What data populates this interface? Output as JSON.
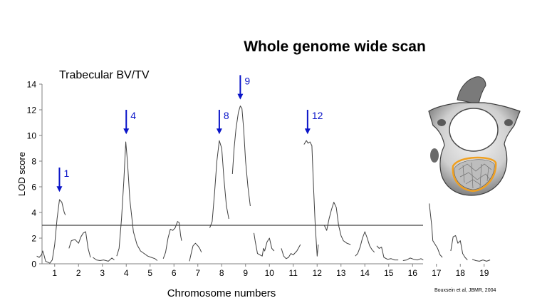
{
  "slide": {
    "title": "Whole genome wide scan",
    "citation": "Bouxsein et al, JBMR, 2004"
  },
  "chart_data": {
    "type": "line",
    "title": "Trabecular BV/TV",
    "xlabel": "Chromosome numbers",
    "ylabel": "LOD score",
    "ylim": [
      0,
      14
    ],
    "y_ticks": [
      0,
      2,
      4,
      6,
      8,
      10,
      12,
      14
    ],
    "x_ticks": [
      "1",
      "2",
      "3",
      "4",
      "5",
      "6",
      "7",
      "8",
      "9",
      "10",
      "11",
      "12",
      "13",
      "14",
      "15",
      "16",
      "17",
      "18",
      "19"
    ],
    "xlim": [
      0.25,
      19.3
    ],
    "threshold": 3.0,
    "grid": false,
    "series": [
      {
        "chromosome": "1",
        "points": [
          [
            0.25,
            0.6
          ],
          [
            0.35,
            0.5
          ],
          [
            0.45,
            0.7
          ],
          [
            0.5,
            1.0
          ],
          [
            0.55,
            0.7
          ],
          [
            0.62,
            0.2
          ],
          [
            0.8,
            0.05
          ],
          [
            0.9,
            0.3
          ],
          [
            1.0,
            1.5
          ],
          [
            1.1,
            3.5
          ],
          [
            1.2,
            5.0
          ],
          [
            1.3,
            4.8
          ],
          [
            1.4,
            4.0
          ],
          [
            1.45,
            3.8
          ]
        ]
      },
      {
        "chromosome": "2",
        "points": [
          [
            1.6,
            1.2
          ],
          [
            1.7,
            1.8
          ],
          [
            1.85,
            1.9
          ],
          [
            2.0,
            1.6
          ],
          [
            2.1,
            2.1
          ],
          [
            2.2,
            2.4
          ],
          [
            2.3,
            2.5
          ],
          [
            2.4,
            1.2
          ],
          [
            2.5,
            0.5
          ]
        ]
      },
      {
        "chromosome": "3",
        "points": [
          [
            2.6,
            0.5
          ],
          [
            2.75,
            0.3
          ],
          [
            2.9,
            0.25
          ],
          [
            3.05,
            0.3
          ],
          [
            3.25,
            0.2
          ],
          [
            3.4,
            0.45
          ],
          [
            3.5,
            0.3
          ]
        ]
      },
      {
        "chromosome": "4",
        "points": [
          [
            3.6,
            0.6
          ],
          [
            3.7,
            1.2
          ],
          [
            3.8,
            3.5
          ],
          [
            3.9,
            6.5
          ],
          [
            3.98,
            9.5
          ],
          [
            4.05,
            8.0
          ],
          [
            4.15,
            5.0
          ],
          [
            4.3,
            2.5
          ],
          [
            4.45,
            1.5
          ],
          [
            4.6,
            1.0
          ],
          [
            4.75,
            0.8
          ],
          [
            4.9,
            0.6
          ],
          [
            5.05,
            0.5
          ],
          [
            5.2,
            0.4
          ],
          [
            5.3,
            0.25
          ]
        ]
      },
      {
        "chromosome": "6",
        "points": [
          [
            5.55,
            0.4
          ],
          [
            5.65,
            0.9
          ],
          [
            5.75,
            2.0
          ],
          [
            5.85,
            2.7
          ],
          [
            5.95,
            2.6
          ],
          [
            6.05,
            2.8
          ],
          [
            6.15,
            3.3
          ],
          [
            6.22,
            3.2
          ],
          [
            6.28,
            2.2
          ],
          [
            6.32,
            1.8
          ]
        ]
      },
      {
        "chromosome": "7",
        "points": [
          [
            6.65,
            0.2
          ],
          [
            6.72,
            0.8
          ],
          [
            6.8,
            1.4
          ],
          [
            6.9,
            1.6
          ],
          [
            7.0,
            1.4
          ],
          [
            7.08,
            1.2
          ],
          [
            7.15,
            0.9
          ]
        ]
      },
      {
        "chromosome": "8",
        "points": [
          [
            7.5,
            2.8
          ],
          [
            7.6,
            3.3
          ],
          [
            7.7,
            5.5
          ],
          [
            7.8,
            8.0
          ],
          [
            7.9,
            9.6
          ],
          [
            8.0,
            9.0
          ],
          [
            8.1,
            6.5
          ],
          [
            8.2,
            4.5
          ],
          [
            8.3,
            3.5
          ]
        ]
      },
      {
        "chromosome": "9",
        "points": [
          [
            8.45,
            7.0
          ],
          [
            8.52,
            9.0
          ],
          [
            8.6,
            10.5
          ],
          [
            8.7,
            11.8
          ],
          [
            8.78,
            12.3
          ],
          [
            8.85,
            12.1
          ],
          [
            8.92,
            10.5
          ],
          [
            9.0,
            8.0
          ],
          [
            9.1,
            6.0
          ],
          [
            9.2,
            4.5
          ]
        ]
      },
      {
        "chromosome": "10",
        "points": [
          [
            9.35,
            2.4
          ],
          [
            9.4,
            1.8
          ],
          [
            9.5,
            0.8
          ],
          [
            9.6,
            0.7
          ],
          [
            9.7,
            0.6
          ],
          [
            9.75,
            1.2
          ],
          [
            9.8,
            1.0
          ],
          [
            9.9,
            1.7
          ],
          [
            10.0,
            2.0
          ],
          [
            10.1,
            1.2
          ],
          [
            10.2,
            1.0
          ]
        ]
      },
      {
        "chromosome": "11",
        "points": [
          [
            10.5,
            1.2
          ],
          [
            10.6,
            0.6
          ],
          [
            10.7,
            0.4
          ],
          [
            10.8,
            0.5
          ],
          [
            10.9,
            0.8
          ],
          [
            11.0,
            0.7
          ],
          [
            11.15,
            1.0
          ],
          [
            11.3,
            1.5
          ]
        ]
      },
      {
        "chromosome": "12",
        "points": [
          [
            11.45,
            9.3
          ],
          [
            11.55,
            9.6
          ],
          [
            11.62,
            9.4
          ],
          [
            11.7,
            9.5
          ],
          [
            11.78,
            9.2
          ],
          [
            11.85,
            6.0
          ],
          [
            11.92,
            3.0
          ],
          [
            12.0,
            0.6
          ],
          [
            12.05,
            1.5
          ]
        ]
      },
      {
        "chromosome": "13",
        "points": [
          [
            12.3,
            3.0
          ],
          [
            12.4,
            2.6
          ],
          [
            12.5,
            3.5
          ],
          [
            12.6,
            4.2
          ],
          [
            12.7,
            4.8
          ],
          [
            12.8,
            4.4
          ],
          [
            12.9,
            3.0
          ],
          [
            13.0,
            2.2
          ],
          [
            13.1,
            1.8
          ],
          [
            13.25,
            1.6
          ],
          [
            13.4,
            1.5
          ]
        ]
      },
      {
        "chromosome": "14",
        "points": [
          [
            13.6,
            0.6
          ],
          [
            13.7,
            0.8
          ],
          [
            13.8,
            1.3
          ],
          [
            13.9,
            2.0
          ],
          [
            14.0,
            2.5
          ],
          [
            14.1,
            2.0
          ],
          [
            14.2,
            1.4
          ],
          [
            14.3,
            1.1
          ],
          [
            14.4,
            0.9
          ]
        ]
      },
      {
        "chromosome": "15",
        "points": [
          [
            14.5,
            1.4
          ],
          [
            14.6,
            1.2
          ],
          [
            14.7,
            1.3
          ],
          [
            14.8,
            0.5
          ],
          [
            14.95,
            0.35
          ],
          [
            15.1,
            0.4
          ],
          [
            15.25,
            0.3
          ],
          [
            15.4,
            0.3
          ]
        ]
      },
      {
        "chromosome": "16",
        "points": [
          [
            15.6,
            0.25
          ],
          [
            15.75,
            0.3
          ],
          [
            15.9,
            0.45
          ],
          [
            16.05,
            0.35
          ],
          [
            16.2,
            0.3
          ],
          [
            16.35,
            0.4
          ],
          [
            16.45,
            0.3
          ]
        ]
      },
      {
        "chromosome": "17",
        "points": [
          [
            16.7,
            4.7
          ],
          [
            16.8,
            3.0
          ],
          [
            16.85,
            1.8
          ],
          [
            16.95,
            1.5
          ],
          [
            17.05,
            1.2
          ],
          [
            17.15,
            0.7
          ],
          [
            17.25,
            0.5
          ]
        ]
      },
      {
        "chromosome": "18",
        "points": [
          [
            17.6,
            1.0
          ],
          [
            17.7,
            2.1
          ],
          [
            17.8,
            2.2
          ],
          [
            17.9,
            1.6
          ],
          [
            18.0,
            1.8
          ],
          [
            18.1,
            0.8
          ],
          [
            18.2,
            0.5
          ],
          [
            18.3,
            0.3
          ]
        ]
      },
      {
        "chromosome": "19",
        "points": [
          [
            18.5,
            0.35
          ],
          [
            18.65,
            0.25
          ],
          [
            18.8,
            0.2
          ],
          [
            18.95,
            0.3
          ],
          [
            19.1,
            0.2
          ],
          [
            19.25,
            0.3
          ]
        ]
      }
    ],
    "annotations": [
      {
        "label": "1",
        "x": 1.2,
        "y_top": 7.5,
        "y_tip": 5.6
      },
      {
        "label": "4",
        "x": 4.0,
        "y_top": 12.0,
        "y_tip": 10.1
      },
      {
        "label": "8",
        "x": 7.9,
        "y_top": 12.0,
        "y_tip": 10.1
      },
      {
        "label": "9",
        "x": 8.78,
        "y_top": 14.7,
        "y_tip": 12.8
      },
      {
        "label": "12",
        "x": 11.6,
        "y_top": 12.0,
        "y_tip": 10.1
      }
    ],
    "colors": {
      "line": "#404040",
      "annotation": "#0a14c8",
      "threshold": "#404040"
    }
  },
  "image": {
    "subject": "vertebra-micro-ct-image",
    "roi_color": "#f0a020"
  }
}
